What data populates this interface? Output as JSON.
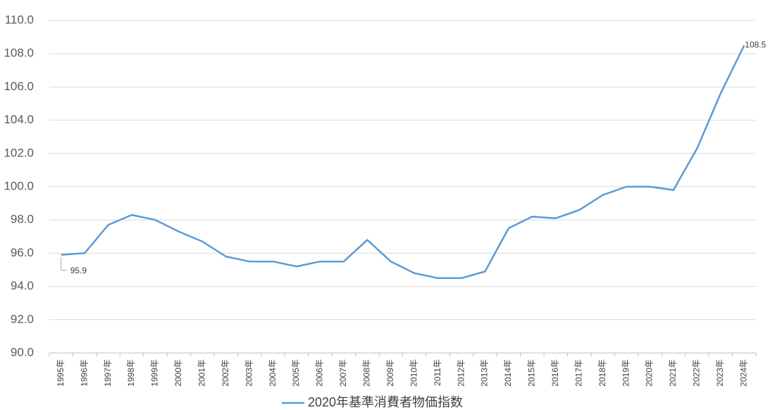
{
  "chart_data": {
    "type": "line",
    "categories": [
      "1995年",
      "1996年",
      "1997年",
      "1998年",
      "1999年",
      "2000年",
      "2001年",
      "2002年",
      "2003年",
      "2004年",
      "2005年",
      "2006年",
      "2007年",
      "2008年",
      "2009年",
      "2010年",
      "2011年",
      "2012年",
      "2013年",
      "2014年",
      "2015年",
      "2016年",
      "2017年",
      "2018年",
      "2019年",
      "2020年",
      "2021年",
      "2022年",
      "2023年",
      "2024年"
    ],
    "series": [
      {
        "name": "2020年基準消費者物価指数",
        "color": "#5b9bd5",
        "values": [
          95.9,
          96.0,
          97.7,
          98.3,
          98.0,
          97.3,
          96.7,
          95.8,
          95.5,
          95.5,
          95.2,
          95.5,
          95.5,
          96.8,
          95.5,
          94.8,
          94.5,
          94.5,
          94.9,
          97.5,
          98.2,
          98.1,
          98.6,
          99.5,
          100.0,
          100.0,
          99.8,
          102.3,
          105.6,
          108.5
        ],
        "value_labels": [
          "95.9",
          null,
          null,
          null,
          null,
          null,
          null,
          null,
          null,
          null,
          null,
          null,
          null,
          null,
          null,
          null,
          null,
          null,
          null,
          null,
          null,
          null,
          null,
          null,
          null,
          null,
          null,
          null,
          null,
          "108.5"
        ]
      }
    ],
    "ylim": [
      90,
      110
    ],
    "yticks": [
      {
        "value": 90,
        "label": "90.0"
      },
      {
        "value": 92,
        "label": "92.0"
      },
      {
        "value": 94,
        "label": "94.0"
      },
      {
        "value": 96,
        "label": "96.0"
      },
      {
        "value": 98,
        "label": "98.0"
      },
      {
        "value": 100,
        "label": "100.0"
      },
      {
        "value": 102,
        "label": "102.0"
      },
      {
        "value": 104,
        "label": "104.0"
      },
      {
        "value": 106,
        "label": "106.0"
      },
      {
        "value": 108,
        "label": "108.0"
      },
      {
        "value": 110,
        "label": "110.0"
      }
    ],
    "grid": true,
    "legend": "bottom"
  }
}
